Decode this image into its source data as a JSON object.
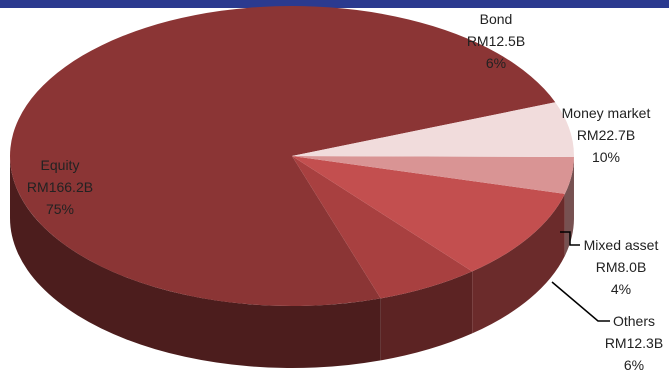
{
  "chart_data": {
    "type": "pie",
    "style": "3d",
    "start_angle_deg": -21,
    "slices": [
      {
        "label": "Equity",
        "amount": "RM166.2B",
        "value": 75,
        "percent": "75%",
        "color": "#8b3535"
      },
      {
        "label": "Bond",
        "amount": "RM12.5B",
        "value": 6,
        "percent": "6%",
        "color": "#a84040"
      },
      {
        "label": "Money market",
        "amount": "RM22.7B",
        "value": 10,
        "percent": "10%",
        "color": "#c34f4f"
      },
      {
        "label": "Mixed asset",
        "amount": "RM8.0B",
        "value": 4,
        "percent": "4%",
        "color": "#d99494"
      },
      {
        "label": "Others",
        "amount": "RM12.3B",
        "value": 6,
        "percent": "6%",
        "color": "#f1dcdc"
      }
    ],
    "legend": "none"
  }
}
